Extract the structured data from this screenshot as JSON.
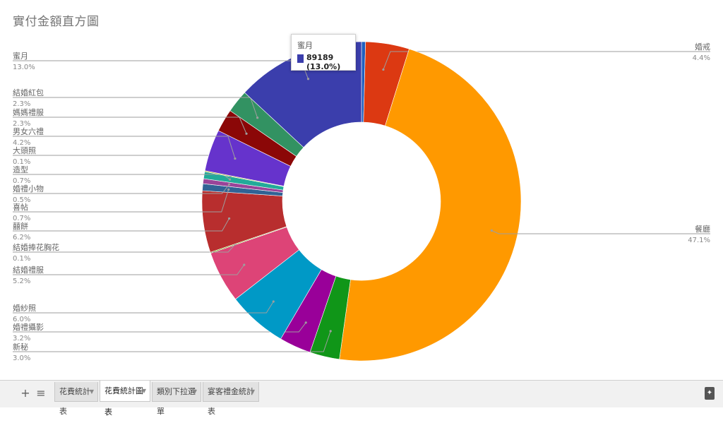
{
  "chart_data": {
    "type": "pie",
    "donut": true,
    "title": "實付金額直方圖",
    "legend": "labeled",
    "slices": [
      {
        "name": "",
        "percent": "",
        "value": 0.4,
        "color": "#1f5fbf"
      },
      {
        "name": "婚戒",
        "percent": "4.4%",
        "value": 4.4,
        "color": "#dc3912"
      },
      {
        "name": "餐廳",
        "percent": "47.1%",
        "value": 47.1,
        "color": "#ff9900"
      },
      {
        "name": "新秘",
        "percent": "3.0%",
        "value": 3.0,
        "color": "#109618"
      },
      {
        "name": "婚禮攝影",
        "percent": "3.2%",
        "value": 3.2,
        "color": "#990099"
      },
      {
        "name": "婚紗照",
        "percent": "6.0%",
        "value": 6.0,
        "color": "#0099c6"
      },
      {
        "name": "結婚禮服",
        "percent": "5.2%",
        "value": 5.2,
        "color": "#dd4477"
      },
      {
        "name": "結婚捧花胸花",
        "percent": "0.1%",
        "value": 0.1,
        "color": "#66aa00"
      },
      {
        "name": "囍餅",
        "percent": "6.2%",
        "value": 6.2,
        "color": "#b82e2e"
      },
      {
        "name": "喜帖",
        "percent": "0.7%",
        "value": 0.7,
        "color": "#316395"
      },
      {
        "name": "婚禮小物",
        "percent": "0.5%",
        "value": 0.5,
        "color": "#994499"
      },
      {
        "name": "造型",
        "percent": "0.7%",
        "value": 0.7,
        "color": "#22aa99"
      },
      {
        "name": "大頭照",
        "percent": "0.1%",
        "value": 0.1,
        "color": "#aaaa11"
      },
      {
        "name": "男女六禮",
        "percent": "4.2%",
        "value": 4.2,
        "color": "#6633cc"
      },
      {
        "name": "媽媽禮服",
        "percent": "2.3%",
        "value": 2.3,
        "color": "#8b0707"
      },
      {
        "name": "結婚紅包",
        "percent": "2.3%",
        "value": 2.3,
        "color": "#329262"
      },
      {
        "name": "蜜月",
        "percent": "13.0%",
        "value": 13.0,
        "color": "#3b3eac"
      }
    ]
  },
  "tooltip": {
    "name": "蜜月",
    "value_text": "89189 (13.0%)",
    "color": "#3b3eac"
  },
  "sheet_bar": {
    "add_icon": "+",
    "list_icon": "≡",
    "tabs": [
      {
        "label": "花費統計表",
        "active": false
      },
      {
        "label": "花費統計圖表",
        "active": true
      },
      {
        "label": "類別下拉選單",
        "active": false
      },
      {
        "label": "宴客禮金統計表",
        "active": false
      }
    ],
    "tab_arrow": "▼",
    "explore_icon": "explore-icon"
  }
}
